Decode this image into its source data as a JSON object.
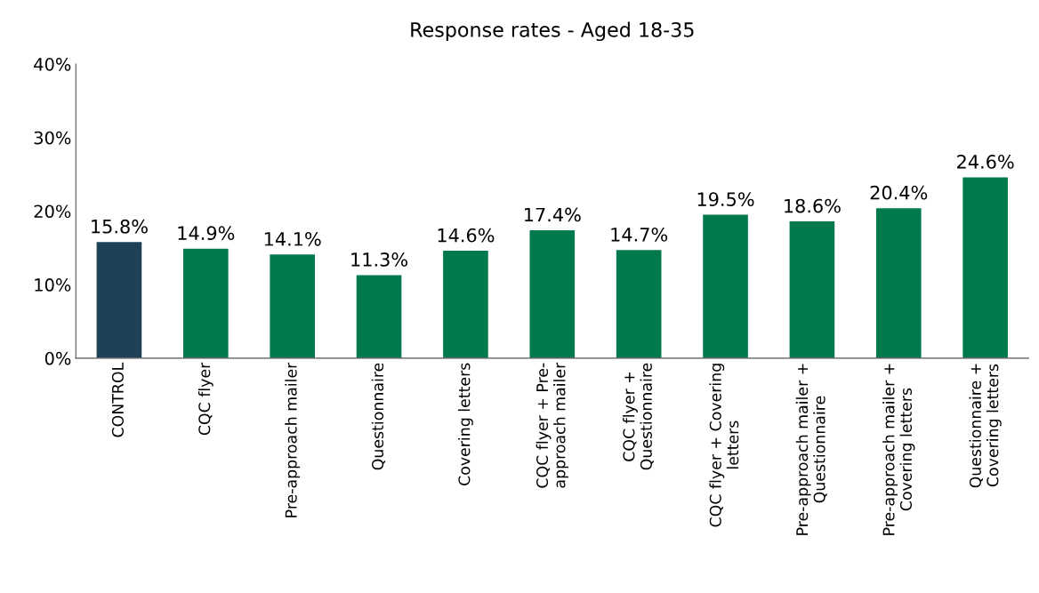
{
  "chart_data": {
    "type": "bar",
    "title": "Response rates - Aged 18-35",
    "categories": [
      "CONTROL",
      "CQC flyer",
      "Pre-approach mailer",
      "Questionnaire",
      "Covering letters",
      "CQC flyer + Pre-\napproach mailer",
      "CQC flyer +\nQuestionnaire",
      "CQC flyer + Covering\nletters",
      "Pre-approach mailer +\nQuestionnaire",
      "Pre-approach mailer +\nCovering letters",
      "Questionnaire +\nCovering letters"
    ],
    "values": [
      15.8,
      14.9,
      14.1,
      11.3,
      14.6,
      17.4,
      14.7,
      19.5,
      18.6,
      20.4,
      24.6
    ],
    "value_labels": [
      "15.8%",
      "14.9%",
      "14.1%",
      "11.3%",
      "14.6%",
      "17.4%",
      "14.7%",
      "19.5%",
      "18.6%",
      "20.4%",
      "24.6%"
    ],
    "colors": [
      "#1f4158",
      "#007a4c",
      "#007a4c",
      "#007a4c",
      "#007a4c",
      "#007a4c",
      "#007a4c",
      "#007a4c",
      "#007a4c",
      "#007a4c",
      "#007a4c"
    ],
    "ylim": [
      0,
      40
    ],
    "yticks": [
      {
        "value": 0,
        "label": "0%"
      },
      {
        "value": 10,
        "label": "10%"
      },
      {
        "value": 20,
        "label": "20%"
      },
      {
        "value": 30,
        "label": "30%"
      },
      {
        "value": 40,
        "label": "40%"
      }
    ],
    "grid": false,
    "legend": false
  }
}
